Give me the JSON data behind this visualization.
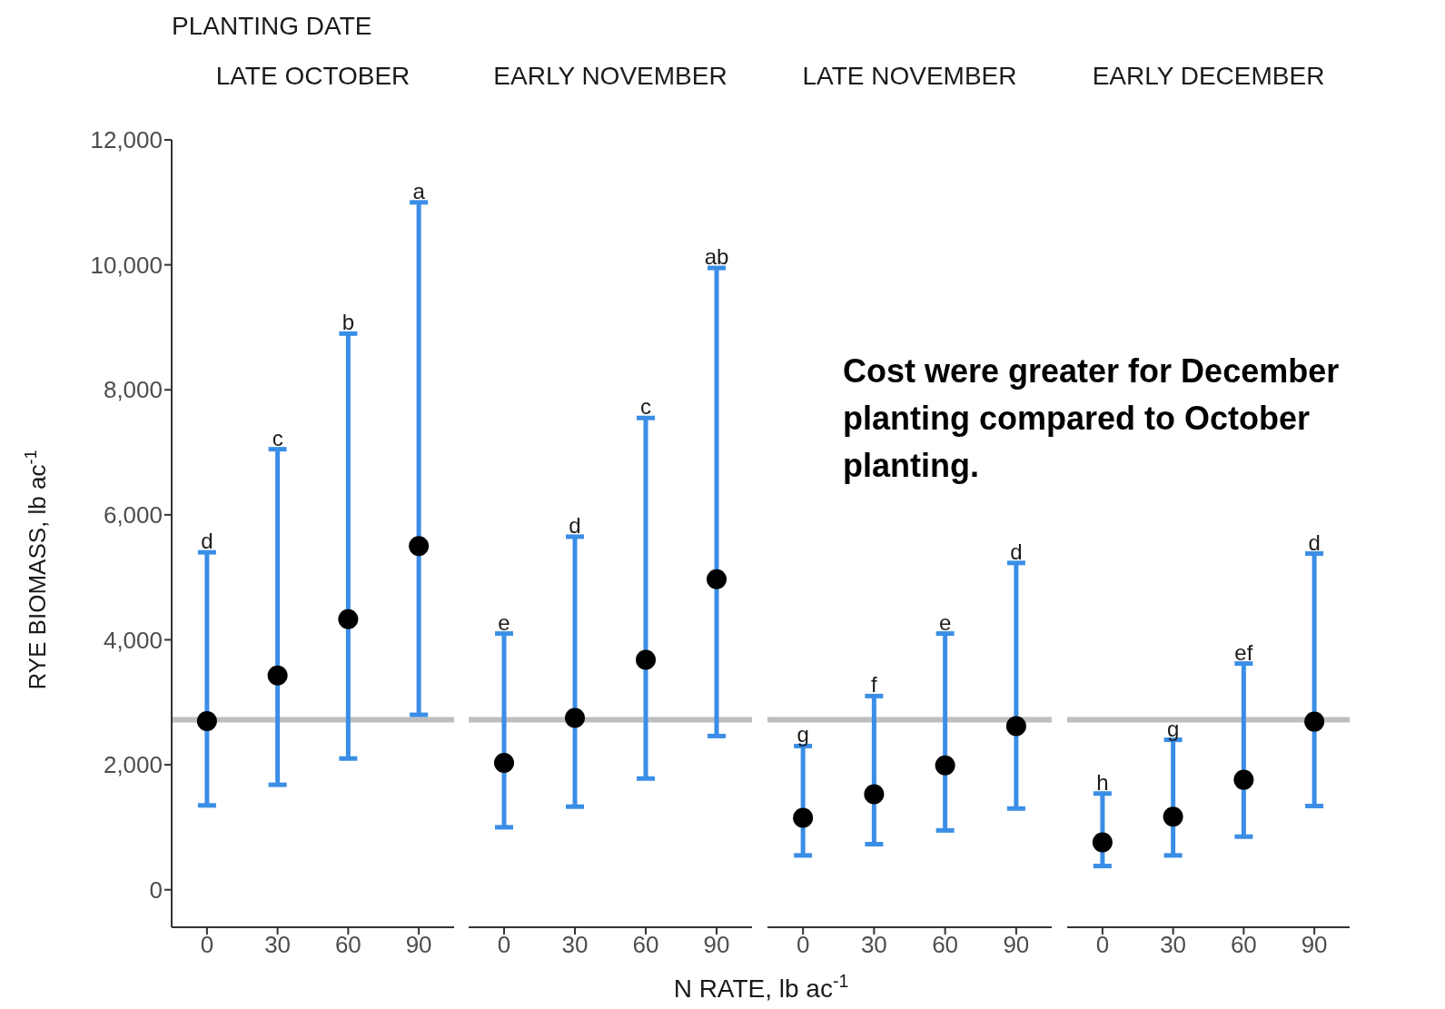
{
  "chart_data": [
    {
      "type": "scatter",
      "title": "LATE OCTOBER",
      "ylabel": "RYE BIOMASS, lb ac$^{-1}$",
      "categories": [
        "0",
        "30",
        "60",
        "90"
      ],
      "values": [
        2700,
        3430,
        4330,
        5500
      ],
      "errors": [
        [
          1350,
          5400
        ],
        [
          1680,
          7050
        ],
        [
          2100,
          8900
        ],
        [
          2800,
          11000
        ]
      ],
      "color": "#000000",
      "marker": "circle",
      "ylim": [
        -600,
        12000
      ],
      "yticks": [
        0,
        {
          "value": 2000,
          "label": "2,000"
        },
        {
          "value": 4000,
          "label": "4,000"
        },
        {
          "value": 6000,
          "label": "6,000"
        },
        {
          "value": 8000,
          "label": "8,000"
        },
        {
          "value": 10000,
          "label": "10,000"
        },
        {
          "value": 12000,
          "label": "12,000"
        }
      ],
      "ref_lines": [
        {
          "axis": "y",
          "value": 2720,
          "color": "#bebebe"
        }
      ],
      "annotations": [
        "PLANTING DATE",
        {
          "text": "d",
          "x": "0",
          "y": 5400
        },
        {
          "text": "c",
          "x": "30",
          "y": 7050
        },
        {
          "text": "b",
          "x": "60",
          "y": 8900
        },
        {
          "text": "a",
          "x": "90",
          "y": 11000
        }
      ]
    },
    {
      "type": "scatter",
      "title": "EARLY NOVEMBER",
      "xlabel": "N RATE, lb ac$^{-1}$",
      "categories": [
        "0",
        "30",
        "60",
        "90"
      ],
      "values": [
        2030,
        2750,
        3680,
        4970
      ],
      "errors": [
        [
          1000,
          4100
        ],
        [
          1330,
          5650
        ],
        [
          1780,
          7550
        ],
        [
          2460,
          9950
        ]
      ],
      "color": "#000000",
      "marker": "circle",
      "ylim": [
        -600,
        12000
      ],
      "tick_labels": "x",
      "ref_lines": [
        {
          "axis": "y",
          "value": 2720,
          "color": "#bebebe"
        }
      ],
      "annotations": [
        {
          "text": "e",
          "x": "0",
          "y": 4100
        },
        {
          "text": "d",
          "x": "30",
          "y": 5650
        },
        {
          "text": "c",
          "x": "60",
          "y": 7550
        },
        {
          "text": "ab",
          "x": "90",
          "y": 9950
        }
      ]
    },
    {
      "type": "scatter",
      "title": "LATE NOVEMBER",
      "categories": [
        "0",
        "30",
        "60",
        "90"
      ],
      "values": [
        1150,
        1530,
        1990,
        2620
      ],
      "errors": [
        [
          550,
          2300
        ],
        [
          730,
          3100
        ],
        [
          950,
          4100
        ],
        [
          1300,
          5230
        ]
      ],
      "color": "#000000",
      "marker": "circle",
      "ylim": [
        -600,
        12000
      ],
      "tick_labels": "x",
      "ref_lines": [
        {
          "axis": "y",
          "value": 2720,
          "color": "#bebebe"
        }
      ],
      "annotations": [
        "Cost were greater for December planting compared to October planting.",
        {
          "text": "g",
          "x": "0",
          "y": 2300
        },
        {
          "text": "f",
          "x": "30",
          "y": 3100
        },
        {
          "text": "e",
          "x": "60",
          "y": 4100
        },
        {
          "text": "d",
          "x": "90",
          "y": 5230
        }
      ]
    },
    {
      "type": "scatter",
      "title": "EARLY DECEMBER",
      "categories": [
        "0",
        "30",
        "60",
        "90"
      ],
      "values": [
        760,
        1170,
        1760,
        2690
      ],
      "errors": [
        [
          380,
          1540
        ],
        [
          550,
          2400
        ],
        [
          850,
          3620
        ],
        [
          1340,
          5380
        ]
      ],
      "color": "#000000",
      "marker": "circle",
      "ylim": [
        -600,
        12000
      ],
      "tick_labels": "x",
      "ref_lines": [
        {
          "axis": "y",
          "value": 2720,
          "color": "#bebebe"
        }
      ],
      "annotations": [
        {
          "text": "h",
          "x": "0",
          "y": 1540
        },
        {
          "text": "g",
          "x": "30",
          "y": 2400
        },
        {
          "text": "ef",
          "x": "60",
          "y": 3620
        },
        {
          "text": "d",
          "x": "90",
          "y": 5380
        }
      ]
    }
  ]
}
